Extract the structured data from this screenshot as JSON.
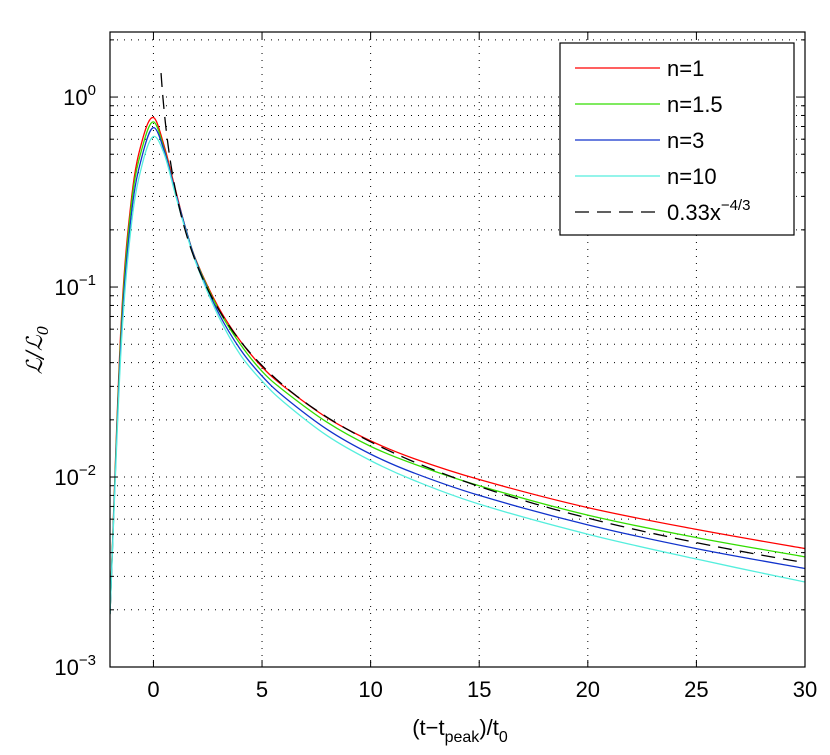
{
  "chart_data": {
    "type": "line",
    "title": "",
    "xlabel": "(t−t_peak)/t_0",
    "xlabel_parts": {
      "a": "(t−t",
      "sub": "peak",
      "b": ")/t",
      "sub2": "0"
    },
    "ylabel": "ℒ/ℒ0",
    "ylabel_parts": {
      "a": "ℒ/ℒ",
      "sub": "0"
    },
    "xlim": [
      -2,
      30
    ],
    "ylim": [
      0.001,
      2.2
    ],
    "yscale": "log",
    "grid": true,
    "legend_position": "top-right",
    "x_ticks": [
      {
        "value": 0,
        "label": "0"
      },
      {
        "value": 5,
        "label": "5"
      },
      {
        "value": 10,
        "label": "10"
      },
      {
        "value": 15,
        "label": "15"
      },
      {
        "value": 20,
        "label": "20"
      },
      {
        "value": 25,
        "label": "25"
      },
      {
        "value": 30,
        "label": "30"
      }
    ],
    "y_ticks": [
      {
        "value": 0.001,
        "base": "10",
        "exp": "−3"
      },
      {
        "value": 0.01,
        "base": "10",
        "exp": "−2"
      },
      {
        "value": 0.1,
        "base": "10",
        "exp": "−1"
      },
      {
        "value": 1,
        "base": "10",
        "exp": "0"
      }
    ],
    "series": [
      {
        "name": "n=1",
        "label": "n=1",
        "color": "#ff0000",
        "dash": "",
        "x": [
          -2,
          -1.5,
          -1,
          -0.5,
          0,
          0.5,
          1,
          1.5,
          2,
          3,
          4,
          5,
          6,
          8,
          10,
          12,
          15,
          20,
          25,
          30
        ],
        "y": [
          0.0019,
          0.06,
          0.3,
          0.6,
          0.78,
          0.55,
          0.33,
          0.2,
          0.135,
          0.078,
          0.052,
          0.038,
          0.03,
          0.0205,
          0.0155,
          0.0125,
          0.0097,
          0.0069,
          0.0053,
          0.0042
        ]
      },
      {
        "name": "n=1.5",
        "label": "n=1.5",
        "color": "#33dd00",
        "dash": "",
        "x": [
          -2,
          -1.5,
          -1,
          -0.5,
          0,
          0.5,
          1,
          1.5,
          2,
          3,
          4,
          5,
          6,
          8,
          10,
          12,
          15,
          20,
          25,
          30
        ],
        "y": [
          0.0019,
          0.055,
          0.28,
          0.55,
          0.74,
          0.53,
          0.32,
          0.2,
          0.134,
          0.076,
          0.05,
          0.036,
          0.0285,
          0.0194,
          0.0145,
          0.0117,
          0.009,
          0.0063,
          0.0048,
          0.0038
        ]
      },
      {
        "name": "n=3",
        "label": "n=3",
        "color": "#1133cc",
        "dash": "",
        "x": [
          -2,
          -1.5,
          -1,
          -0.5,
          0,
          0.5,
          1,
          1.5,
          2,
          3,
          4,
          5,
          6,
          8,
          10,
          12,
          15,
          20,
          25,
          30
        ],
        "y": [
          0.0019,
          0.05,
          0.25,
          0.5,
          0.69,
          0.52,
          0.32,
          0.2,
          0.133,
          0.073,
          0.047,
          0.034,
          0.0265,
          0.0178,
          0.0132,
          0.0105,
          0.008,
          0.0056,
          0.0042,
          0.0033
        ]
      },
      {
        "name": "n=10",
        "label": "n=10",
        "color": "#55eedd",
        "dash": "",
        "x": [
          -2,
          -1.5,
          -1,
          -0.5,
          0,
          0.5,
          1,
          1.5,
          2,
          3,
          4,
          5,
          6,
          8,
          10,
          12,
          15,
          20,
          25,
          30
        ],
        "y": [
          0.0019,
          0.045,
          0.22,
          0.45,
          0.62,
          0.5,
          0.31,
          0.195,
          0.13,
          0.07,
          0.044,
          0.032,
          0.0248,
          0.0165,
          0.0122,
          0.0096,
          0.0072,
          0.005,
          0.0037,
          0.0028
        ]
      },
      {
        "name": "0.33x^-4/3",
        "label": "0.33x",
        "label_sup": "−4/3",
        "color": "#000000",
        "dash": "14,8",
        "func": {
          "coef": 0.33,
          "power": -1.3333333,
          "xmin": 0.35,
          "xmax": 30
        }
      }
    ]
  }
}
